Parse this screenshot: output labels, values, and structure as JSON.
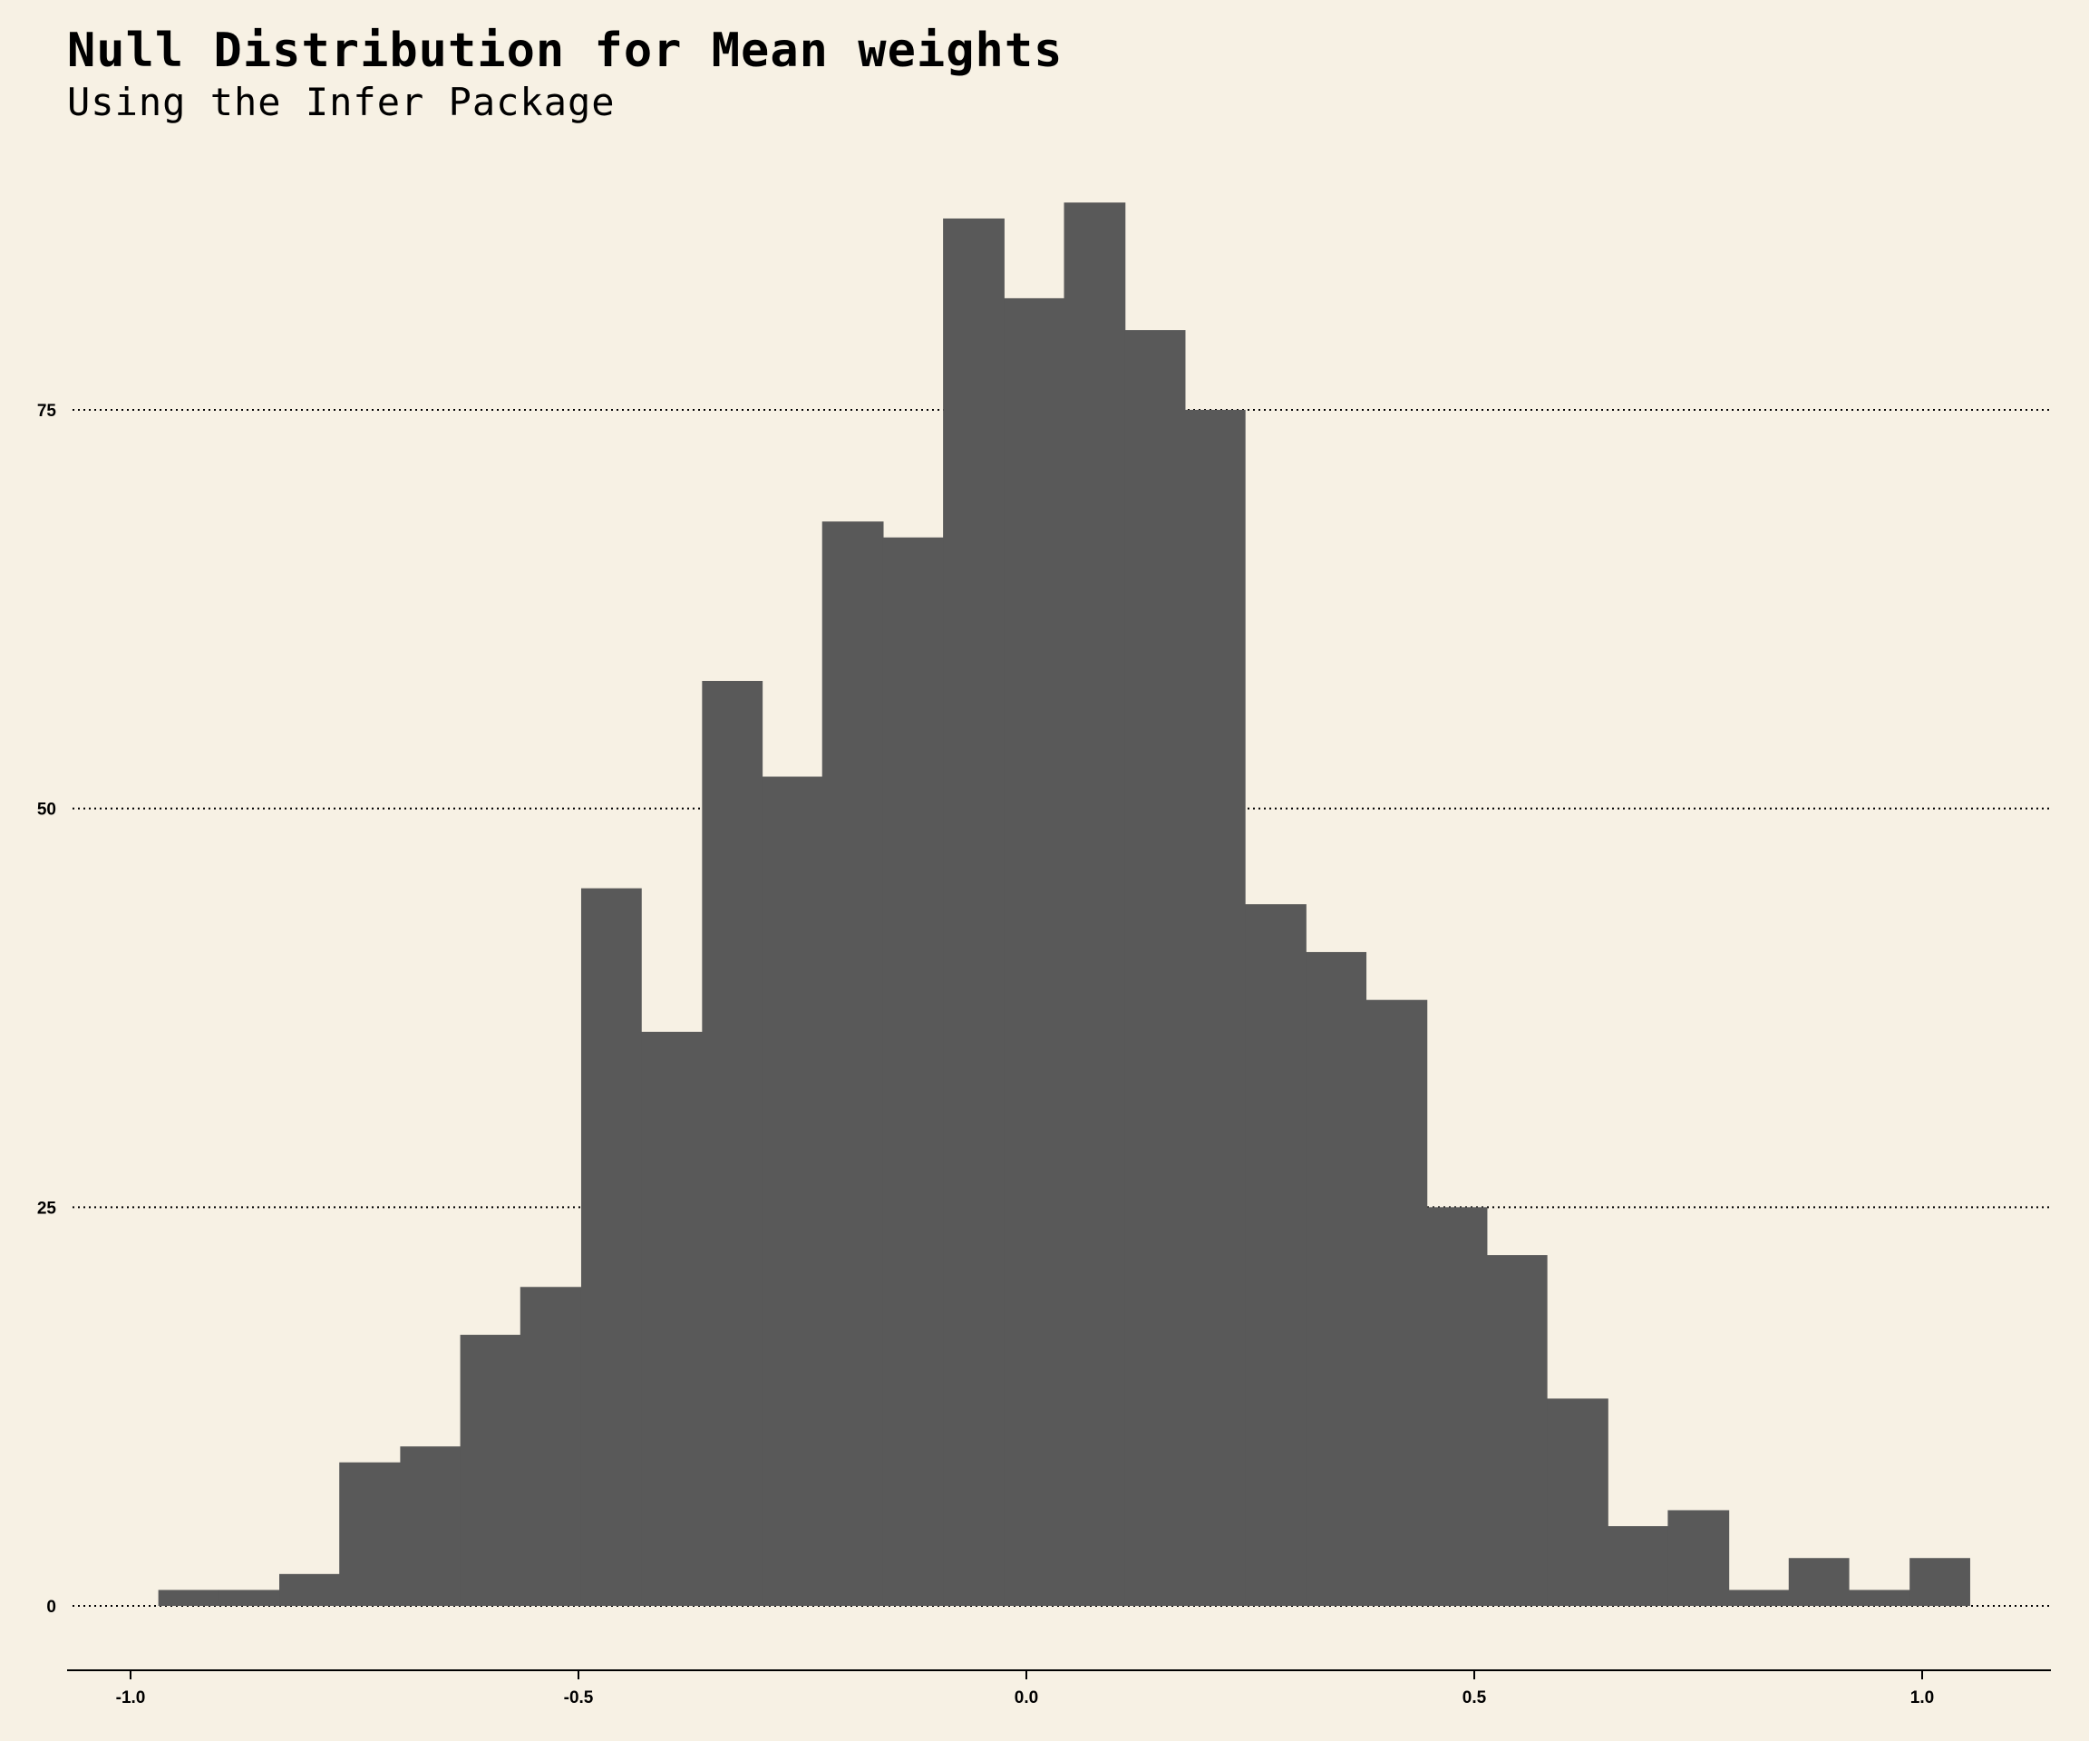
{
  "chart_data": {
    "type": "bar",
    "title": "Null Distribution for Mean weights",
    "subtitle": "Using the Infer Package",
    "xlabel": "",
    "ylabel": "",
    "xlim": [
      -1.08,
      1.15
    ],
    "ylim": [
      -4,
      90
    ],
    "x_ticks": [
      -1.0,
      -0.5,
      0.0,
      0.5,
      1.0
    ],
    "x_tick_labels": [
      "-1.0",
      "-0.5",
      "0.0",
      "0.5",
      "1.0"
    ],
    "y_ticks": [
      0,
      25,
      50,
      75
    ],
    "y_tick_labels": [
      "0",
      "25",
      "50",
      "75"
    ],
    "grid": "horizontal dotted",
    "bin_width": 0.0674,
    "bins": [
      {
        "x0": -0.969,
        "x1": -0.902,
        "count": 1
      },
      {
        "x0": -0.902,
        "x1": -0.834,
        "count": 1
      },
      {
        "x0": -0.834,
        "x1": -0.767,
        "count": 2
      },
      {
        "x0": -0.767,
        "x1": -0.699,
        "count": 9
      },
      {
        "x0": -0.699,
        "x1": -0.632,
        "count": 10
      },
      {
        "x0": -0.632,
        "x1": -0.565,
        "count": 17
      },
      {
        "x0": -0.565,
        "x1": -0.497,
        "count": 20
      },
      {
        "x0": -0.497,
        "x1": -0.43,
        "count": 45
      },
      {
        "x0": -0.43,
        "x1": -0.362,
        "count": 36
      },
      {
        "x0": -0.362,
        "x1": -0.295,
        "count": 58
      },
      {
        "x0": -0.295,
        "x1": -0.228,
        "count": 52
      },
      {
        "x0": -0.228,
        "x1": -0.16,
        "count": 68
      },
      {
        "x0": -0.16,
        "x1": -0.093,
        "count": 67
      },
      {
        "x0": -0.093,
        "x1": -0.025,
        "count": 87
      },
      {
        "x0": -0.025,
        "x1": 0.042,
        "count": 82
      },
      {
        "x0": 0.042,
        "x1": 0.11,
        "count": 88
      },
      {
        "x0": 0.11,
        "x1": 0.177,
        "count": 80
      },
      {
        "x0": 0.177,
        "x1": 0.244,
        "count": 75
      },
      {
        "x0": 0.244,
        "x1": 0.312,
        "count": 44
      },
      {
        "x0": 0.312,
        "x1": 0.379,
        "count": 41
      },
      {
        "x0": 0.379,
        "x1": 0.447,
        "count": 38
      },
      {
        "x0": 0.447,
        "x1": 0.514,
        "count": 25
      },
      {
        "x0": 0.514,
        "x1": 0.581,
        "count": 22
      },
      {
        "x0": 0.581,
        "x1": 0.649,
        "count": 13
      },
      {
        "x0": 0.649,
        "x1": 0.716,
        "count": 5
      },
      {
        "x0": 0.716,
        "x1": 0.784,
        "count": 6
      },
      {
        "x0": 0.784,
        "x1": 0.851,
        "count": 1
      },
      {
        "x0": 0.851,
        "x1": 0.918,
        "count": 3
      },
      {
        "x0": 0.918,
        "x1": 0.986,
        "count": 1
      },
      {
        "x0": 0.986,
        "x1": 1.053,
        "count": 3
      }
    ],
    "colors": {
      "background": "#F7F1E4",
      "bar": "#595959",
      "grid": "#000000",
      "axis": "#000000"
    }
  }
}
